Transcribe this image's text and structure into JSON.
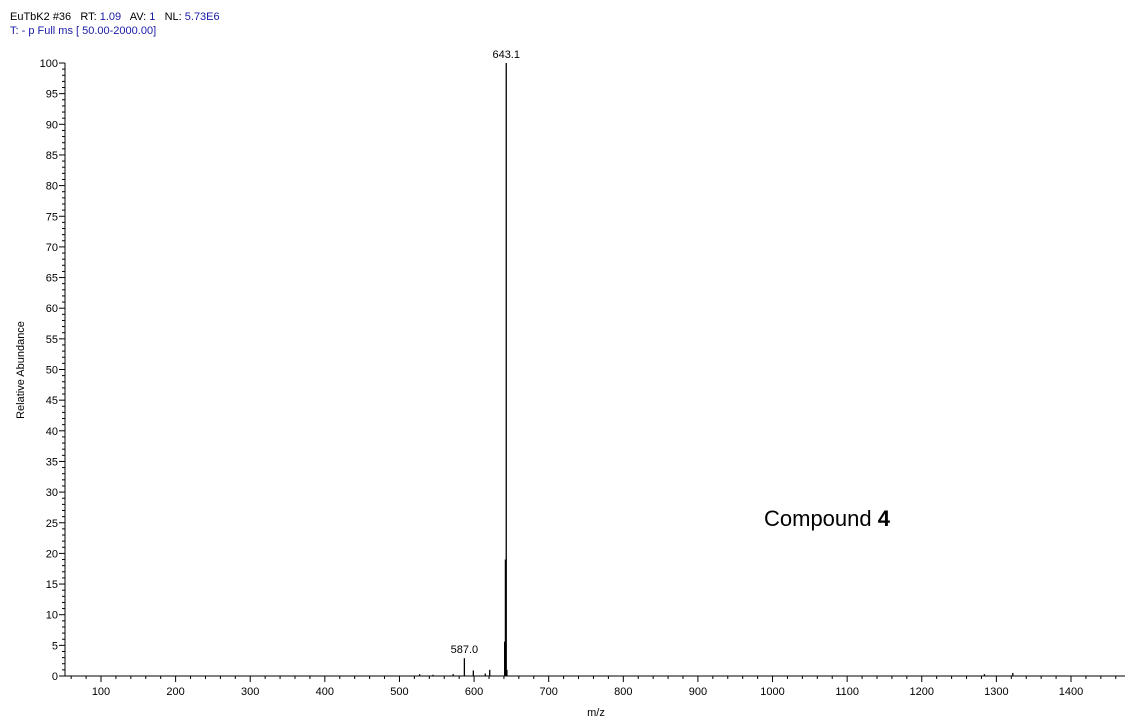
{
  "header": {
    "line1": {
      "file": "EuTbK2",
      "scan": "#36",
      "rt_label": "RT:",
      "rt_value": "1.09",
      "av_label": "AV:",
      "av_value": "1",
      "nl_label": "NL:",
      "nl_value": "5.73E6"
    },
    "line2": "T: - p Full ms [ 50.00-2000.00]"
  },
  "colors": {
    "header_value": "#1a1aa6",
    "axis": "#000000",
    "peaks": "#000000"
  },
  "chart_data": {
    "type": "bar",
    "title": "",
    "xlabel": "m/z",
    "ylabel": "Relative Abundance",
    "xlim": [
      50,
      1490
    ],
    "ylim": [
      0,
      100
    ],
    "x_ticks": [
      100,
      200,
      300,
      400,
      500,
      600,
      700,
      800,
      900,
      1000,
      1100,
      1200,
      1300,
      1400
    ],
    "y_ticks": [
      0,
      5,
      10,
      15,
      20,
      25,
      30,
      35,
      40,
      45,
      50,
      55,
      60,
      65,
      70,
      75,
      80,
      85,
      90,
      95,
      100
    ],
    "grid": false,
    "annotation": {
      "text": "Compound ",
      "bold": "4"
    },
    "peaks": [
      {
        "x": 527.0,
        "y": 0.3
      },
      {
        "x": 545.0,
        "y": 0.2
      },
      {
        "x": 572.0,
        "y": 0.3
      },
      {
        "x": 587.0,
        "y": 2.9,
        "label": "587.0"
      },
      {
        "x": 599.0,
        "y": 0.9
      },
      {
        "x": 615.0,
        "y": 0.4
      },
      {
        "x": 621.0,
        "y": 1.0
      },
      {
        "x": 641.0,
        "y": 5.6
      },
      {
        "x": 642.0,
        "y": 19.0
      },
      {
        "x": 643.1,
        "y": 100,
        "label": "643.1"
      },
      {
        "x": 644.0,
        "y": 1.0
      },
      {
        "x": 1284.0,
        "y": 0.3
      },
      {
        "x": 1322.0,
        "y": 0.5
      }
    ]
  }
}
